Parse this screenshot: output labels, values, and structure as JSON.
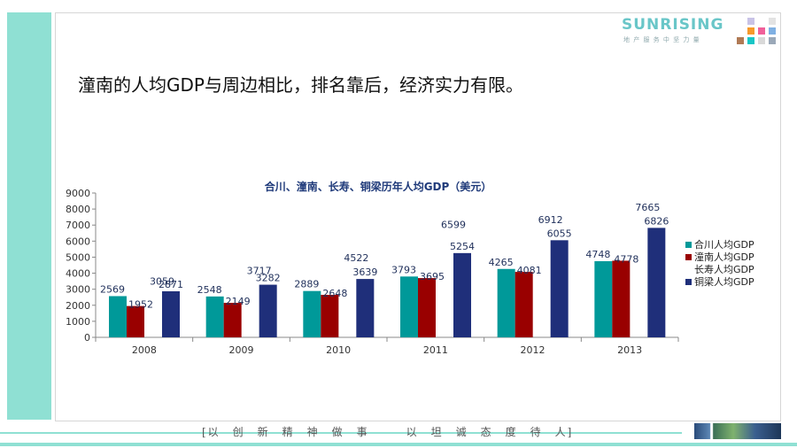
{
  "brand": {
    "name": "SUNRISING",
    "subtitle": "地 产 服 务 中 坚 力 量"
  },
  "headline": "潼南的人均GDP与周边相比，排名靠后，经济实力有限。",
  "footer": {
    "motto": "[以　创　新　精　神　做　事　　　以　坦　诚　态　度　待　人]"
  },
  "colors": {
    "band": "#8fe0d3",
    "series": [
      "#009999",
      "#990000",
      "#4f81bd",
      "#1f2f7a"
    ]
  },
  "chart_data": {
    "type": "bar",
    "title": "合川、潼南、长寿、铜梁历年人均GDP（美元）",
    "categories": [
      "2008",
      "2009",
      "2010",
      "2011",
      "2012",
      "2013"
    ],
    "series": [
      {
        "name": "合川人均GDP",
        "values": [
          2569,
          2548,
          2889,
          3793,
          4265,
          4748
        ]
      },
      {
        "name": "潼南人均GDP",
        "values": [
          1952,
          2149,
          2648,
          3695,
          4081,
          4778
        ]
      },
      {
        "name": "长寿人均GDP",
        "values": [
          3059,
          3717,
          4522,
          6599,
          6912,
          7665
        ]
      },
      {
        "name": "铜梁人均GDP",
        "values": [
          2871,
          3282,
          3639,
          5254,
          6055,
          6826
        ]
      }
    ],
    "ylim": [
      0,
      9000
    ],
    "yticks": [
      "0",
      "1000",
      "2000",
      "3000",
      "4000",
      "5000",
      "6000",
      "7000",
      "8000",
      "9000"
    ],
    "grid": false,
    "legend": "right"
  }
}
